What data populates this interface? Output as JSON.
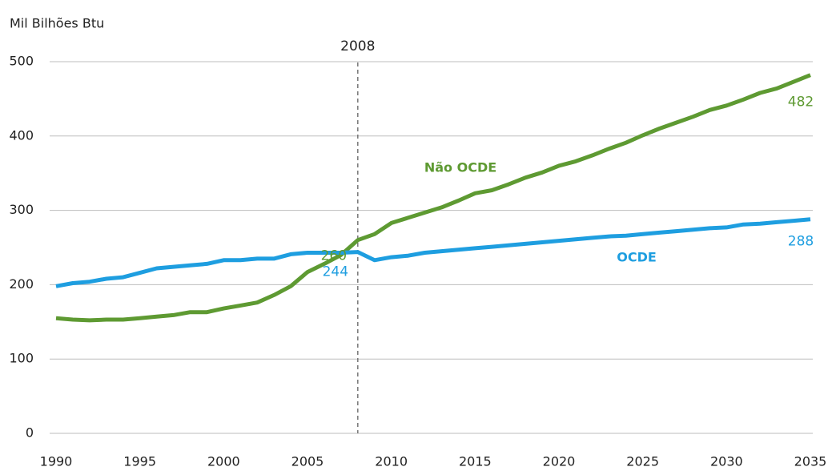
{
  "chart_data": {
    "type": "line",
    "y_axis_label": "Mil Bilhões Btu",
    "x": [
      1990,
      1991,
      1992,
      1993,
      1994,
      1995,
      1996,
      1997,
      1998,
      1999,
      2000,
      2001,
      2002,
      2003,
      2004,
      2005,
      2006,
      2007,
      2008,
      2009,
      2010,
      2011,
      2012,
      2013,
      2014,
      2015,
      2016,
      2017,
      2018,
      2019,
      2020,
      2021,
      2022,
      2023,
      2024,
      2025,
      2026,
      2027,
      2028,
      2029,
      2030,
      2031,
      2032,
      2033,
      2034,
      2035
    ],
    "series": [
      {
        "name": "Não OCDE",
        "color": "#5e9a32",
        "values": [
          155,
          153,
          152,
          153,
          153,
          155,
          157,
          159,
          163,
          163,
          168,
          172,
          176,
          186,
          198,
          217,
          228,
          240,
          260,
          268,
          283,
          290,
          297,
          304,
          313,
          323,
          327,
          335,
          344,
          351,
          360,
          366,
          374,
          383,
          391,
          401,
          410,
          418,
          426,
          435,
          441,
          449,
          458,
          464,
          473,
          482
        ]
      },
      {
        "name": "OCDE",
        "color": "#1e9ee0",
        "values": [
          198,
          202,
          204,
          208,
          210,
          216,
          222,
          224,
          226,
          228,
          233,
          233,
          235,
          235,
          241,
          243,
          243,
          243,
          244,
          233,
          237,
          239,
          243,
          245,
          247,
          249,
          251,
          253,
          255,
          257,
          259,
          261,
          263,
          265,
          266,
          268,
          270,
          272,
          274,
          276,
          277,
          281,
          282,
          284,
          286,
          288
        ]
      }
    ],
    "xlim": [
      1990,
      2035
    ],
    "xticks": [
      1990,
      1995,
      2000,
      2005,
      2010,
      2015,
      2020,
      2025,
      2030,
      2035
    ],
    "ylim": [
      0,
      500
    ],
    "yticks": [
      0,
      100,
      200,
      300,
      400,
      500
    ],
    "grid": true,
    "reference_line_x": 2008
  }
}
